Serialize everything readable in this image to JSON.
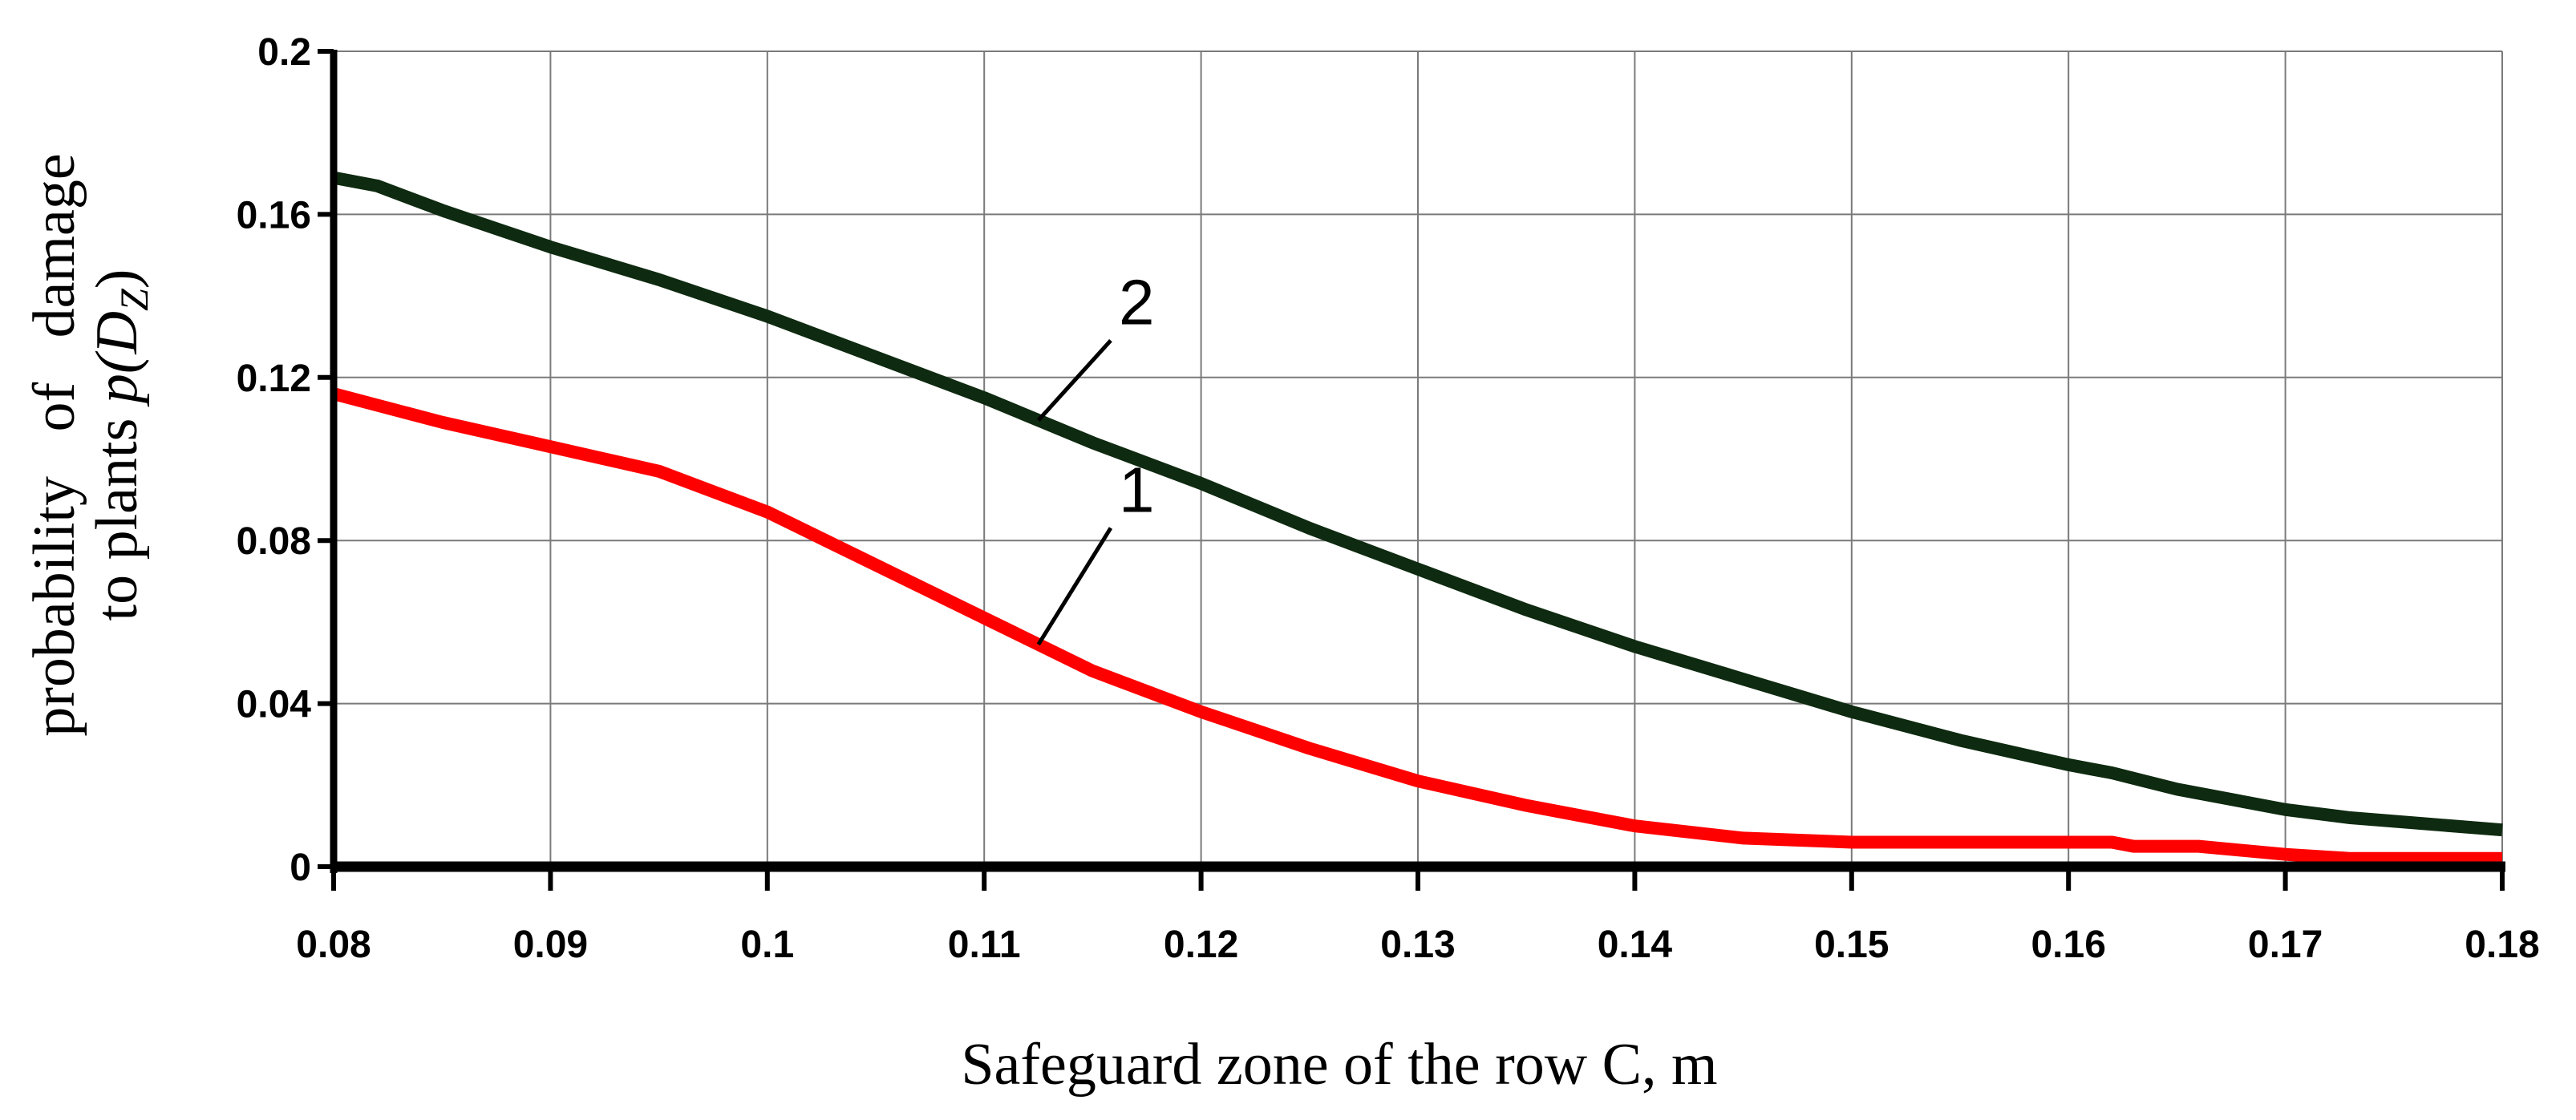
{
  "chart_data": {
    "type": "line",
    "xlabel": "Safeguard zone of the row C, m",
    "ylabel_line1": "probability   of   damage",
    "ylabel_line2_prefix": "to plants ",
    "ylabel_line2_math": "p(",
    "ylabel_line2_var": "D",
    "ylabel_line2_sub": "Z",
    "ylabel_line2_close": ")",
    "xlim": [
      0.08,
      0.18
    ],
    "ylim": [
      0,
      0.2
    ],
    "x_ticks": [
      0.08,
      0.09,
      0.1,
      0.11,
      0.12,
      0.13,
      0.14,
      0.15,
      0.16,
      0.17,
      0.18
    ],
    "x_tick_labels": [
      "0.08",
      "0.09",
      "0.1",
      "0.11",
      "0.12",
      "0.13",
      "0.14",
      "0.15",
      "0.16",
      "0.17",
      "0.18"
    ],
    "y_ticks": [
      0,
      0.04,
      0.08,
      0.12,
      0.16,
      0.2
    ],
    "y_tick_labels": [
      "0",
      "0.04",
      "0.08",
      "0.12",
      "0.16",
      "0.2"
    ],
    "grid": true,
    "series": [
      {
        "name": "1",
        "color": "#ff0000",
        "x": [
          0.08,
          0.085,
          0.09,
          0.095,
          0.1,
          0.105,
          0.11,
          0.115,
          0.12,
          0.125,
          0.13,
          0.135,
          0.14,
          0.145,
          0.15,
          0.155,
          0.16,
          0.162,
          0.163,
          0.166,
          0.17,
          0.173,
          0.18
        ],
        "y": [
          0.116,
          0.109,
          0.103,
          0.097,
          0.087,
          0.074,
          0.061,
          0.048,
          0.038,
          0.029,
          0.021,
          0.015,
          0.01,
          0.007,
          0.006,
          0.006,
          0.006,
          0.006,
          0.005,
          0.005,
          0.003,
          0.002,
          0.002
        ]
      },
      {
        "name": "2",
        "color": "#0e2a10",
        "x": [
          0.08,
          0.082,
          0.085,
          0.09,
          0.095,
          0.1,
          0.105,
          0.11,
          0.115,
          0.12,
          0.125,
          0.13,
          0.135,
          0.14,
          0.145,
          0.15,
          0.155,
          0.16,
          0.161,
          0.162,
          0.165,
          0.17,
          0.173,
          0.18
        ],
        "y": [
          0.169,
          0.167,
          0.161,
          0.152,
          0.144,
          0.135,
          0.125,
          0.115,
          0.104,
          0.094,
          0.083,
          0.073,
          0.063,
          0.054,
          0.046,
          0.038,
          0.031,
          0.025,
          0.024,
          0.023,
          0.019,
          0.014,
          0.012,
          0.009
        ]
      }
    ],
    "annotations": [
      {
        "text": "1",
        "series": "1",
        "at_x": 0.1125,
        "text_x": 0.1165,
        "text_y": 0.087
      },
      {
        "text": "2",
        "series": "2",
        "at_x": 0.1125,
        "text_x": 0.1165,
        "text_y": 0.133
      }
    ]
  }
}
